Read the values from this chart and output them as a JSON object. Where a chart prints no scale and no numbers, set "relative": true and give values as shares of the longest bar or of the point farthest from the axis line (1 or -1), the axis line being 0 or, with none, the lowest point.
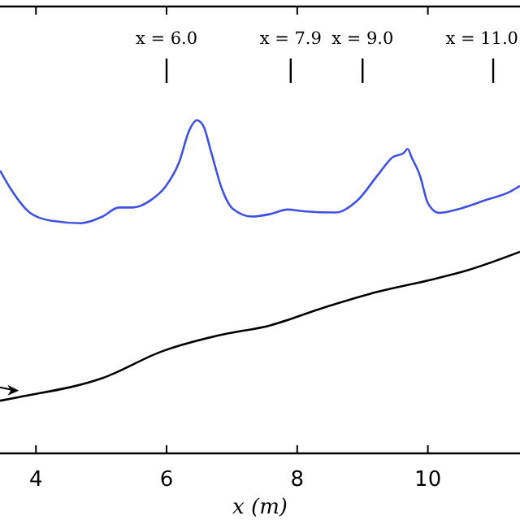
{
  "chart_data": {
    "type": "line",
    "relative": true,
    "xlabel": "x (m)",
    "xlim": [
      3.45,
      11.41
    ],
    "xticks": [
      4,
      6,
      8,
      10
    ],
    "tick_labels": "x",
    "series": [
      {
        "color": "#3f51e0",
        "x": [
          3.45,
          3.62,
          3.91,
          4.24,
          4.69,
          5.02,
          5.27,
          5.48,
          5.77,
          5.98,
          6.19,
          6.35,
          6.46,
          6.56,
          6.68,
          6.85,
          7.01,
          7.31,
          7.6,
          7.85,
          8.09,
          8.59,
          8.92,
          9.25,
          9.46,
          9.63,
          9.69,
          9.75,
          9.88,
          10.0,
          10.17,
          10.5,
          10.91,
          11.24,
          11.41
        ],
        "values": [
          0.849,
          0.792,
          0.722,
          0.698,
          0.691,
          0.711,
          0.738,
          0.738,
          0.762,
          0.8,
          0.873,
          0.971,
          1.0,
          0.984,
          0.906,
          0.792,
          0.735,
          0.711,
          0.719,
          0.732,
          0.727,
          0.723,
          0.759,
          0.84,
          0.889,
          0.902,
          0.914,
          0.889,
          0.833,
          0.751,
          0.722,
          0.735,
          0.762,
          0.784,
          0.803
        ]
      },
      {
        "color": "#000000",
        "x": [
          3.45,
          3.74,
          5.02,
          5.94,
          6.77,
          7.6,
          8.43,
          9.25,
          10.0,
          10.58,
          11.41
        ],
        "values": [
          0.158,
          0.169,
          0.226,
          0.307,
          0.353,
          0.385,
          0.439,
          0.486,
          0.519,
          0.548,
          0.605
        ]
      }
    ],
    "ref_lines": [
      {
        "axis": "x",
        "value": 6.0,
        "label": "x = 6.0"
      },
      {
        "axis": "x",
        "value": 7.9,
        "label": "x = 7.9"
      },
      {
        "axis": "x",
        "value": 9.0,
        "label": "x = 9.0"
      },
      {
        "axis": "x",
        "value": 11.0,
        "label": "x = 11.0"
      }
    ]
  }
}
